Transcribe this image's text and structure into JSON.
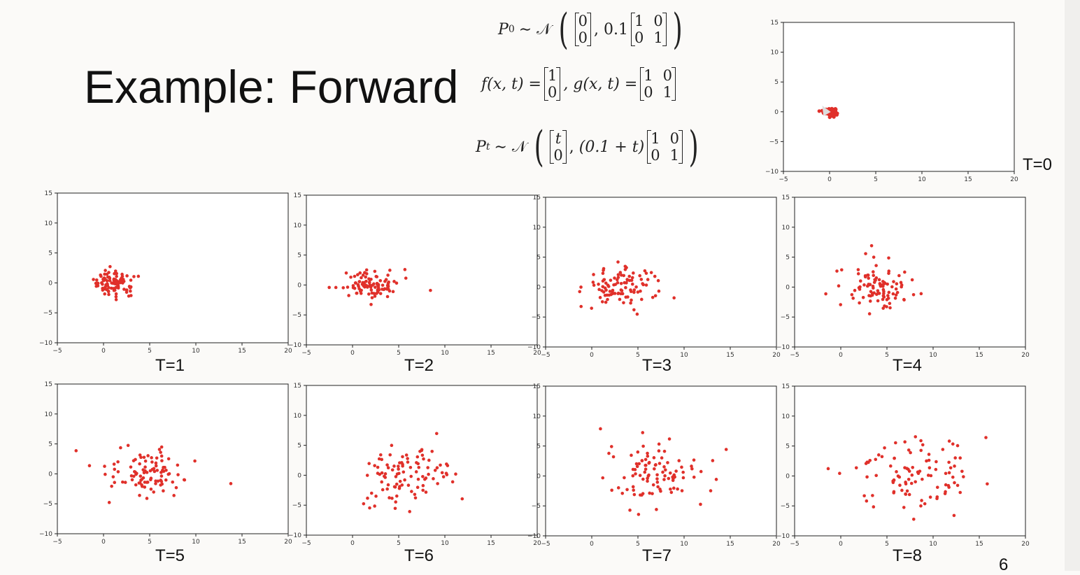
{
  "slide": {
    "title": "Example: Forward",
    "page_number": "6",
    "eq_p0": {
      "lhs": "P",
      "sub": "0",
      "sim": "∼ 𝒩",
      "mean": [
        "0",
        "0"
      ],
      "scale": "0.1",
      "cov": [
        [
          "1",
          "0"
        ],
        [
          "0",
          "1"
        ]
      ]
    },
    "eq_fg": {
      "f": "f(x, t) =",
      "f_vec": [
        "1",
        "0"
      ],
      "g": ", g(x, t) =",
      "g_mat": [
        [
          "1",
          "0"
        ],
        [
          "0",
          "1"
        ]
      ]
    },
    "eq_pt": {
      "lhs": "P",
      "sub": "t",
      "sim": "∼ 𝒩",
      "mean": [
        "t",
        "0"
      ],
      "scale": "(0.1 + t)",
      "cov": [
        [
          "1",
          "0"
        ],
        [
          "0",
          "1"
        ]
      ]
    }
  },
  "colors": {
    "point": "#e0302a",
    "axis": "#222222"
  },
  "chart_data": [
    {
      "type": "scatter",
      "label": "T=0",
      "xlim": [
        -5,
        20
      ],
      "ylim": [
        -10,
        15
      ],
      "xticks": [
        "−5",
        "0",
        "5",
        "10",
        "15",
        "20"
      ],
      "yticks": [
        "15",
        "10",
        "5",
        "0",
        "−5",
        "−10"
      ],
      "center": [
        0,
        0
      ],
      "spread": 0.32,
      "n": 100
    },
    {
      "type": "scatter",
      "label": "T=1",
      "xlim": [
        -5,
        20
      ],
      "ylim": [
        -10,
        15
      ],
      "xticks": [
        "−5",
        "0",
        "5",
        "10",
        "15",
        "20"
      ],
      "yticks": [
        "15",
        "10",
        "5",
        "0",
        "−5",
        "−10"
      ],
      "center": [
        1,
        0
      ],
      "spread": 1.05,
      "n": 100
    },
    {
      "type": "scatter",
      "label": "T=2",
      "xlim": [
        -5,
        20
      ],
      "ylim": [
        -10,
        15
      ],
      "xticks": [
        "−5",
        "0",
        "5",
        "10",
        "15",
        "20"
      ],
      "yticks": [
        "15",
        "10",
        "5",
        "0",
        "−5",
        "−10"
      ],
      "center": [
        2,
        0
      ],
      "spread": 1.45,
      "n": 100
    },
    {
      "type": "scatter",
      "label": "T=3",
      "xlim": [
        -5,
        20
      ],
      "ylim": [
        -10,
        15
      ],
      "xticks": [
        "−5",
        "0",
        "5",
        "10",
        "15",
        "20"
      ],
      "yticks": [
        "15",
        "10",
        "5",
        "0",
        "−5",
        "−10"
      ],
      "center": [
        3,
        0
      ],
      "spread": 1.76,
      "n": 100
    },
    {
      "type": "scatter",
      "label": "T=4",
      "xlim": [
        -5,
        20
      ],
      "ylim": [
        -10,
        15
      ],
      "xticks": [
        "−5",
        "0",
        "5",
        "10",
        "15",
        "20"
      ],
      "yticks": [
        "15",
        "10",
        "5",
        "0",
        "−5",
        "−10"
      ],
      "center": [
        4,
        0
      ],
      "spread": 2.02,
      "n": 100
    },
    {
      "type": "scatter",
      "label": "T=5",
      "xlim": [
        -5,
        20
      ],
      "ylim": [
        -10,
        15
      ],
      "xticks": [
        "−5",
        "0",
        "5",
        "10",
        "15",
        "20"
      ],
      "yticks": [
        "15",
        "10",
        "5",
        "0",
        "−5",
        "−10"
      ],
      "center": [
        5,
        0
      ],
      "spread": 2.26,
      "n": 100
    },
    {
      "type": "scatter",
      "label": "T=6",
      "xlim": [
        -5,
        20
      ],
      "ylim": [
        -10,
        15
      ],
      "xticks": [
        "−5",
        "0",
        "5",
        "10",
        "15",
        "20"
      ],
      "yticks": [
        "15",
        "10",
        "5",
        "0",
        "−5",
        "−10"
      ],
      "center": [
        6,
        0
      ],
      "spread": 2.47,
      "n": 100
    },
    {
      "type": "scatter",
      "label": "T=7",
      "xlim": [
        -5,
        20
      ],
      "ylim": [
        -10,
        15
      ],
      "xticks": [
        "−5",
        "0",
        "5",
        "10",
        "15",
        "20"
      ],
      "yticks": [
        "15",
        "10",
        "5",
        "0",
        "−5",
        "−10"
      ],
      "center": [
        7,
        0
      ],
      "spread": 2.67,
      "n": 100
    },
    {
      "type": "scatter",
      "label": "T=8",
      "xlim": [
        -5,
        20
      ],
      "ylim": [
        -10,
        15
      ],
      "xticks": [
        "−5",
        "0",
        "5",
        "10",
        "15",
        "20"
      ],
      "yticks": [
        "15",
        "10",
        "5",
        "0",
        "−5",
        "−10"
      ],
      "center": [
        8,
        0
      ],
      "spread": 2.85,
      "n": 100
    }
  ]
}
